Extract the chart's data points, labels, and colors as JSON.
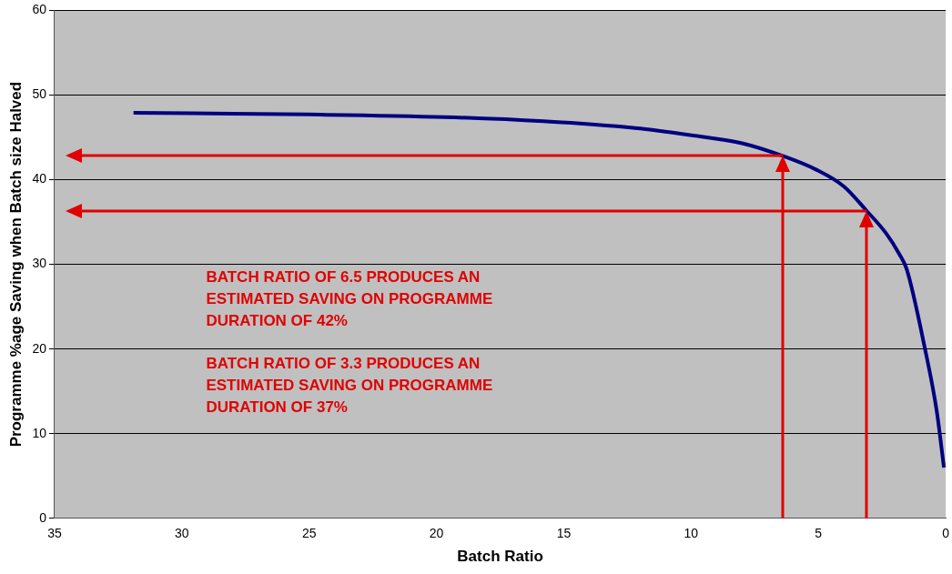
{
  "chart_data": {
    "type": "line",
    "xlabel": "Batch Ratio",
    "ylabel": "Programme %age Saving when Batch size Halved",
    "x": [
      31.9,
      25,
      19.7,
      15.8,
      12.2,
      10.1,
      8.0,
      6.4,
      5.1,
      4.0,
      3.1,
      2.35,
      1.82,
      1.53,
      0.82,
      0.36,
      0.07
    ],
    "series": [
      {
        "color": "#000080",
        "values": [
          47.9,
          47.7,
          47.4,
          46.9,
          46.1,
          45.3,
          44.3,
          42.8,
          41.2,
          39.2,
          36.3,
          33.7,
          31.2,
          29.4,
          20.1,
          12.8,
          6.0
        ]
      }
    ],
    "xlim": [
      35,
      0
    ],
    "xticks": [
      35,
      30,
      25,
      20,
      15,
      10,
      5,
      0
    ],
    "ylim": [
      0,
      60
    ],
    "yticks": [
      0,
      10,
      20,
      30,
      40,
      50,
      60
    ],
    "grid": "y",
    "marker": "none",
    "line_style": "solid",
    "ref_lines": [
      {
        "axis": "x",
        "value": 6.4,
        "color": "#e00000"
      },
      {
        "axis": "y",
        "value": 42.8,
        "color": "#e00000"
      },
      {
        "axis": "x",
        "value": 3.1,
        "color": "#e00000"
      },
      {
        "axis": "y",
        "value": 36.3,
        "color": "#e00000"
      }
    ],
    "annotations": [
      "BATCH RATIO OF 6.5 PRODUCES AN ESTIMATED SAVING ON PROGRAMME DURATION OF 42%",
      "BATCH RATIO OF 3.3 PRODUCES AN ESTIMATED SAVING ON PROGRAMME DURATION OF 37%"
    ]
  }
}
